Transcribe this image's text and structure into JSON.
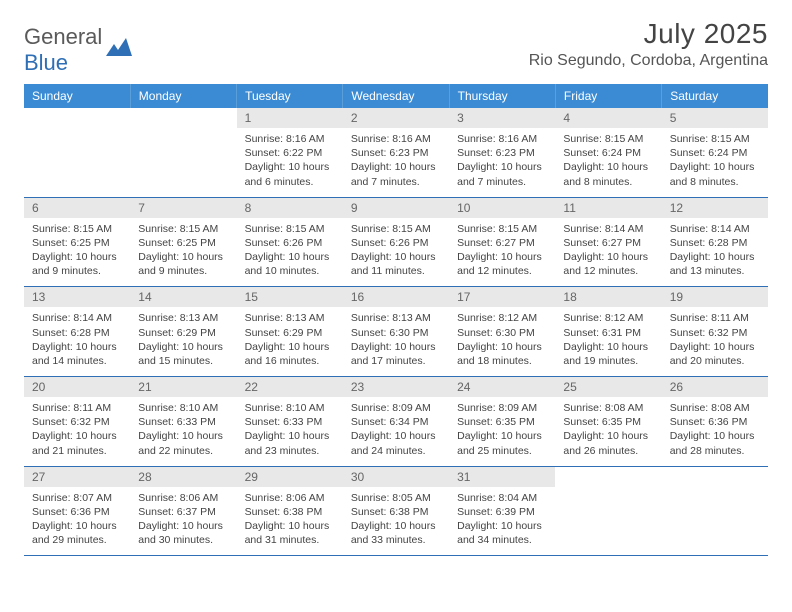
{
  "brand": {
    "part1": "General",
    "part2": "Blue"
  },
  "title": "July 2025",
  "location": "Rio Segundo, Cordoba, Argentina",
  "colors": {
    "header_bg": "#3b8bd4",
    "header_text": "#ffffff",
    "row_divider": "#2e6fb5",
    "daynum_bg": "#e8e8e8",
    "text": "#444444",
    "brand_gray": "#5a5a5a",
    "brand_blue": "#2e6fb5"
  },
  "weekdays": [
    "Sunday",
    "Monday",
    "Tuesday",
    "Wednesday",
    "Thursday",
    "Friday",
    "Saturday"
  ],
  "weeks": [
    [
      {
        "empty": true
      },
      {
        "empty": true
      },
      {
        "day": "1",
        "sunrise": "Sunrise: 8:16 AM",
        "sunset": "Sunset: 6:22 PM",
        "daylight1": "Daylight: 10 hours",
        "daylight2": "and 6 minutes."
      },
      {
        "day": "2",
        "sunrise": "Sunrise: 8:16 AM",
        "sunset": "Sunset: 6:23 PM",
        "daylight1": "Daylight: 10 hours",
        "daylight2": "and 7 minutes."
      },
      {
        "day": "3",
        "sunrise": "Sunrise: 8:16 AM",
        "sunset": "Sunset: 6:23 PM",
        "daylight1": "Daylight: 10 hours",
        "daylight2": "and 7 minutes."
      },
      {
        "day": "4",
        "sunrise": "Sunrise: 8:15 AM",
        "sunset": "Sunset: 6:24 PM",
        "daylight1": "Daylight: 10 hours",
        "daylight2": "and 8 minutes."
      },
      {
        "day": "5",
        "sunrise": "Sunrise: 8:15 AM",
        "sunset": "Sunset: 6:24 PM",
        "daylight1": "Daylight: 10 hours",
        "daylight2": "and 8 minutes."
      }
    ],
    [
      {
        "day": "6",
        "sunrise": "Sunrise: 8:15 AM",
        "sunset": "Sunset: 6:25 PM",
        "daylight1": "Daylight: 10 hours",
        "daylight2": "and 9 minutes."
      },
      {
        "day": "7",
        "sunrise": "Sunrise: 8:15 AM",
        "sunset": "Sunset: 6:25 PM",
        "daylight1": "Daylight: 10 hours",
        "daylight2": "and 9 minutes."
      },
      {
        "day": "8",
        "sunrise": "Sunrise: 8:15 AM",
        "sunset": "Sunset: 6:26 PM",
        "daylight1": "Daylight: 10 hours",
        "daylight2": "and 10 minutes."
      },
      {
        "day": "9",
        "sunrise": "Sunrise: 8:15 AM",
        "sunset": "Sunset: 6:26 PM",
        "daylight1": "Daylight: 10 hours",
        "daylight2": "and 11 minutes."
      },
      {
        "day": "10",
        "sunrise": "Sunrise: 8:15 AM",
        "sunset": "Sunset: 6:27 PM",
        "daylight1": "Daylight: 10 hours",
        "daylight2": "and 12 minutes."
      },
      {
        "day": "11",
        "sunrise": "Sunrise: 8:14 AM",
        "sunset": "Sunset: 6:27 PM",
        "daylight1": "Daylight: 10 hours",
        "daylight2": "and 12 minutes."
      },
      {
        "day": "12",
        "sunrise": "Sunrise: 8:14 AM",
        "sunset": "Sunset: 6:28 PM",
        "daylight1": "Daylight: 10 hours",
        "daylight2": "and 13 minutes."
      }
    ],
    [
      {
        "day": "13",
        "sunrise": "Sunrise: 8:14 AM",
        "sunset": "Sunset: 6:28 PM",
        "daylight1": "Daylight: 10 hours",
        "daylight2": "and 14 minutes."
      },
      {
        "day": "14",
        "sunrise": "Sunrise: 8:13 AM",
        "sunset": "Sunset: 6:29 PM",
        "daylight1": "Daylight: 10 hours",
        "daylight2": "and 15 minutes."
      },
      {
        "day": "15",
        "sunrise": "Sunrise: 8:13 AM",
        "sunset": "Sunset: 6:29 PM",
        "daylight1": "Daylight: 10 hours",
        "daylight2": "and 16 minutes."
      },
      {
        "day": "16",
        "sunrise": "Sunrise: 8:13 AM",
        "sunset": "Sunset: 6:30 PM",
        "daylight1": "Daylight: 10 hours",
        "daylight2": "and 17 minutes."
      },
      {
        "day": "17",
        "sunrise": "Sunrise: 8:12 AM",
        "sunset": "Sunset: 6:30 PM",
        "daylight1": "Daylight: 10 hours",
        "daylight2": "and 18 minutes."
      },
      {
        "day": "18",
        "sunrise": "Sunrise: 8:12 AM",
        "sunset": "Sunset: 6:31 PM",
        "daylight1": "Daylight: 10 hours",
        "daylight2": "and 19 minutes."
      },
      {
        "day": "19",
        "sunrise": "Sunrise: 8:11 AM",
        "sunset": "Sunset: 6:32 PM",
        "daylight1": "Daylight: 10 hours",
        "daylight2": "and 20 minutes."
      }
    ],
    [
      {
        "day": "20",
        "sunrise": "Sunrise: 8:11 AM",
        "sunset": "Sunset: 6:32 PM",
        "daylight1": "Daylight: 10 hours",
        "daylight2": "and 21 minutes."
      },
      {
        "day": "21",
        "sunrise": "Sunrise: 8:10 AM",
        "sunset": "Sunset: 6:33 PM",
        "daylight1": "Daylight: 10 hours",
        "daylight2": "and 22 minutes."
      },
      {
        "day": "22",
        "sunrise": "Sunrise: 8:10 AM",
        "sunset": "Sunset: 6:33 PM",
        "daylight1": "Daylight: 10 hours",
        "daylight2": "and 23 minutes."
      },
      {
        "day": "23",
        "sunrise": "Sunrise: 8:09 AM",
        "sunset": "Sunset: 6:34 PM",
        "daylight1": "Daylight: 10 hours",
        "daylight2": "and 24 minutes."
      },
      {
        "day": "24",
        "sunrise": "Sunrise: 8:09 AM",
        "sunset": "Sunset: 6:35 PM",
        "daylight1": "Daylight: 10 hours",
        "daylight2": "and 25 minutes."
      },
      {
        "day": "25",
        "sunrise": "Sunrise: 8:08 AM",
        "sunset": "Sunset: 6:35 PM",
        "daylight1": "Daylight: 10 hours",
        "daylight2": "and 26 minutes."
      },
      {
        "day": "26",
        "sunrise": "Sunrise: 8:08 AM",
        "sunset": "Sunset: 6:36 PM",
        "daylight1": "Daylight: 10 hours",
        "daylight2": "and 28 minutes."
      }
    ],
    [
      {
        "day": "27",
        "sunrise": "Sunrise: 8:07 AM",
        "sunset": "Sunset: 6:36 PM",
        "daylight1": "Daylight: 10 hours",
        "daylight2": "and 29 minutes."
      },
      {
        "day": "28",
        "sunrise": "Sunrise: 8:06 AM",
        "sunset": "Sunset: 6:37 PM",
        "daylight1": "Daylight: 10 hours",
        "daylight2": "and 30 minutes."
      },
      {
        "day": "29",
        "sunrise": "Sunrise: 8:06 AM",
        "sunset": "Sunset: 6:38 PM",
        "daylight1": "Daylight: 10 hours",
        "daylight2": "and 31 minutes."
      },
      {
        "day": "30",
        "sunrise": "Sunrise: 8:05 AM",
        "sunset": "Sunset: 6:38 PM",
        "daylight1": "Daylight: 10 hours",
        "daylight2": "and 33 minutes."
      },
      {
        "day": "31",
        "sunrise": "Sunrise: 8:04 AM",
        "sunset": "Sunset: 6:39 PM",
        "daylight1": "Daylight: 10 hours",
        "daylight2": "and 34 minutes."
      },
      {
        "empty": true
      },
      {
        "empty": true
      }
    ]
  ]
}
